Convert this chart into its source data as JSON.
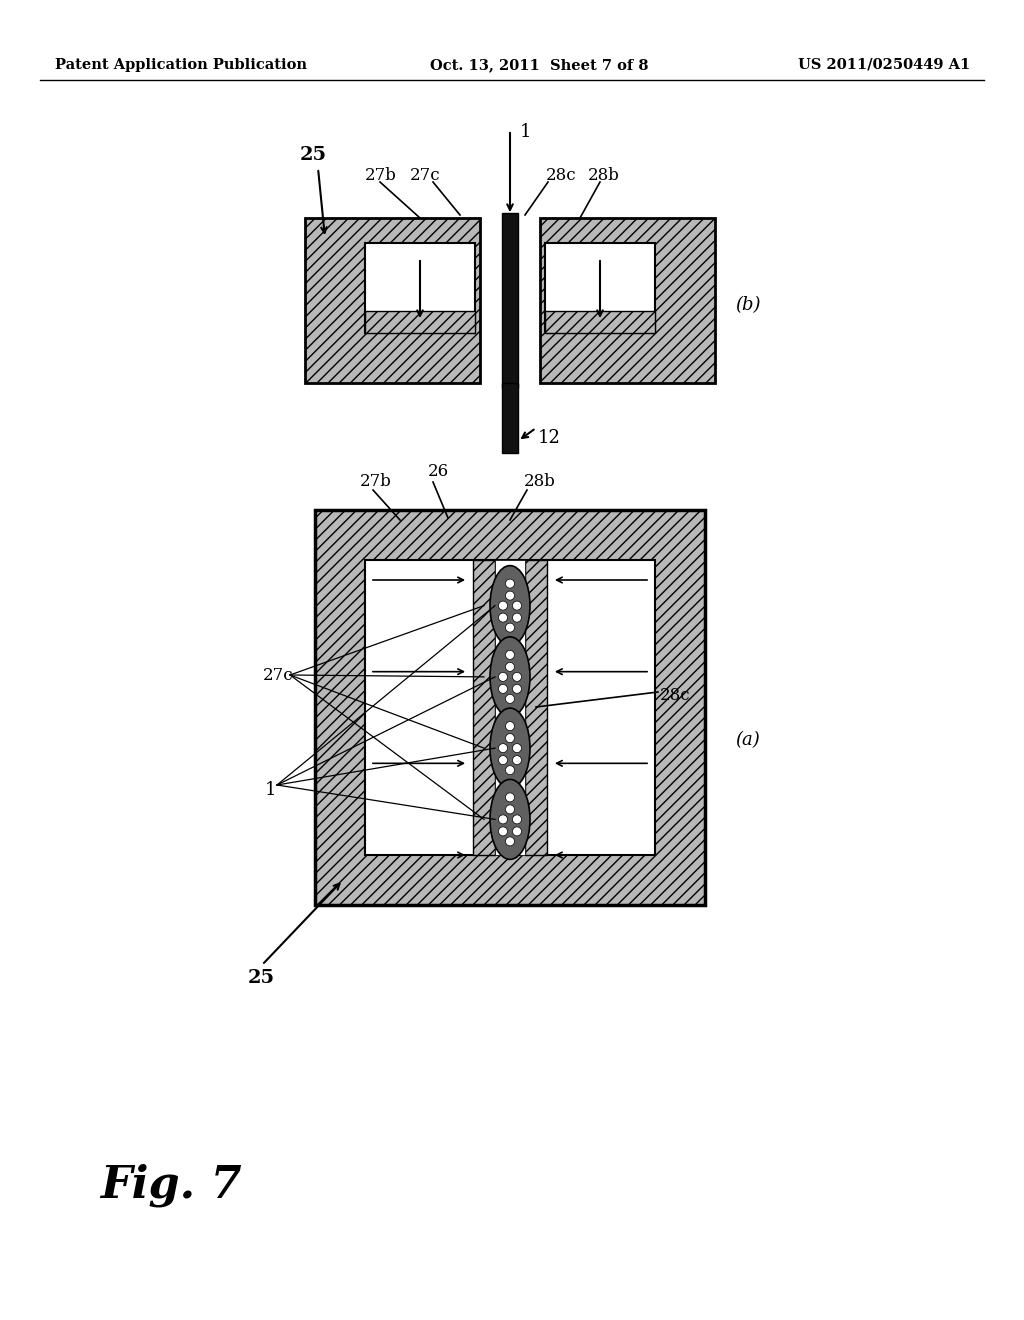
{
  "bg_color": "#ffffff",
  "header_left": "Patent Application Publication",
  "header_center": "Oct. 13, 2011  Sheet 7 of 8",
  "header_right": "US 2011/0250449 A1",
  "fig_label": "Fig. 7"
}
